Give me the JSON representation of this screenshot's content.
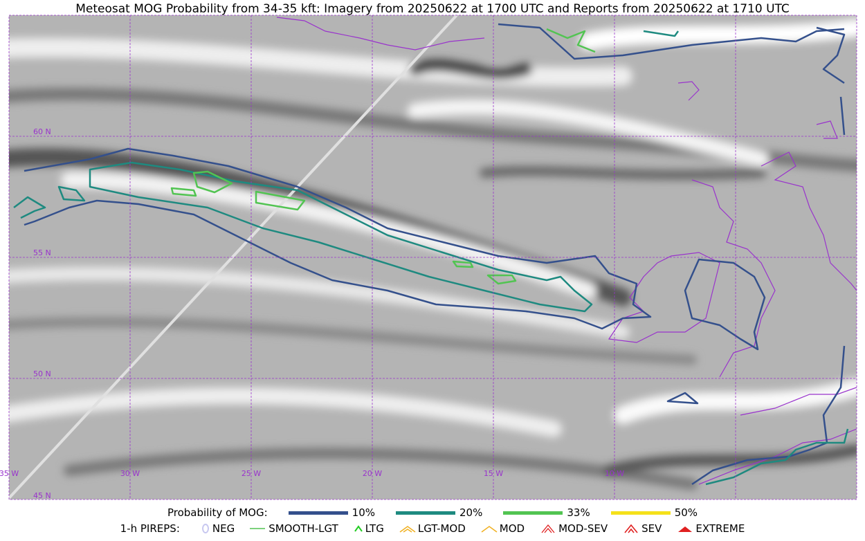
{
  "title": "Meteosat MOG Probability from 34-35 kft: Imagery from 20250622 at 1700 UTC and Reports from 20250622 at 1710 UTC",
  "grid_labels": {
    "lat": [
      "60 N",
      "55 N",
      "50 N",
      "45 N"
    ],
    "lon": [
      "35 W",
      "30 W",
      "25 W",
      "20 W",
      "15 W",
      "10 W"
    ]
  },
  "legend": {
    "probability": {
      "label": "Probability of MOG:",
      "items": [
        "10%",
        "20%",
        "33%",
        "50%"
      ]
    },
    "pireps": {
      "label": "1-h PIREPS:",
      "items": [
        "NEG",
        "SMOOTH-LGT",
        "LTG",
        "LGT-MOD",
        "MOD",
        "MOD-SEV",
        "SEV",
        "EXTREME"
      ]
    }
  }
}
